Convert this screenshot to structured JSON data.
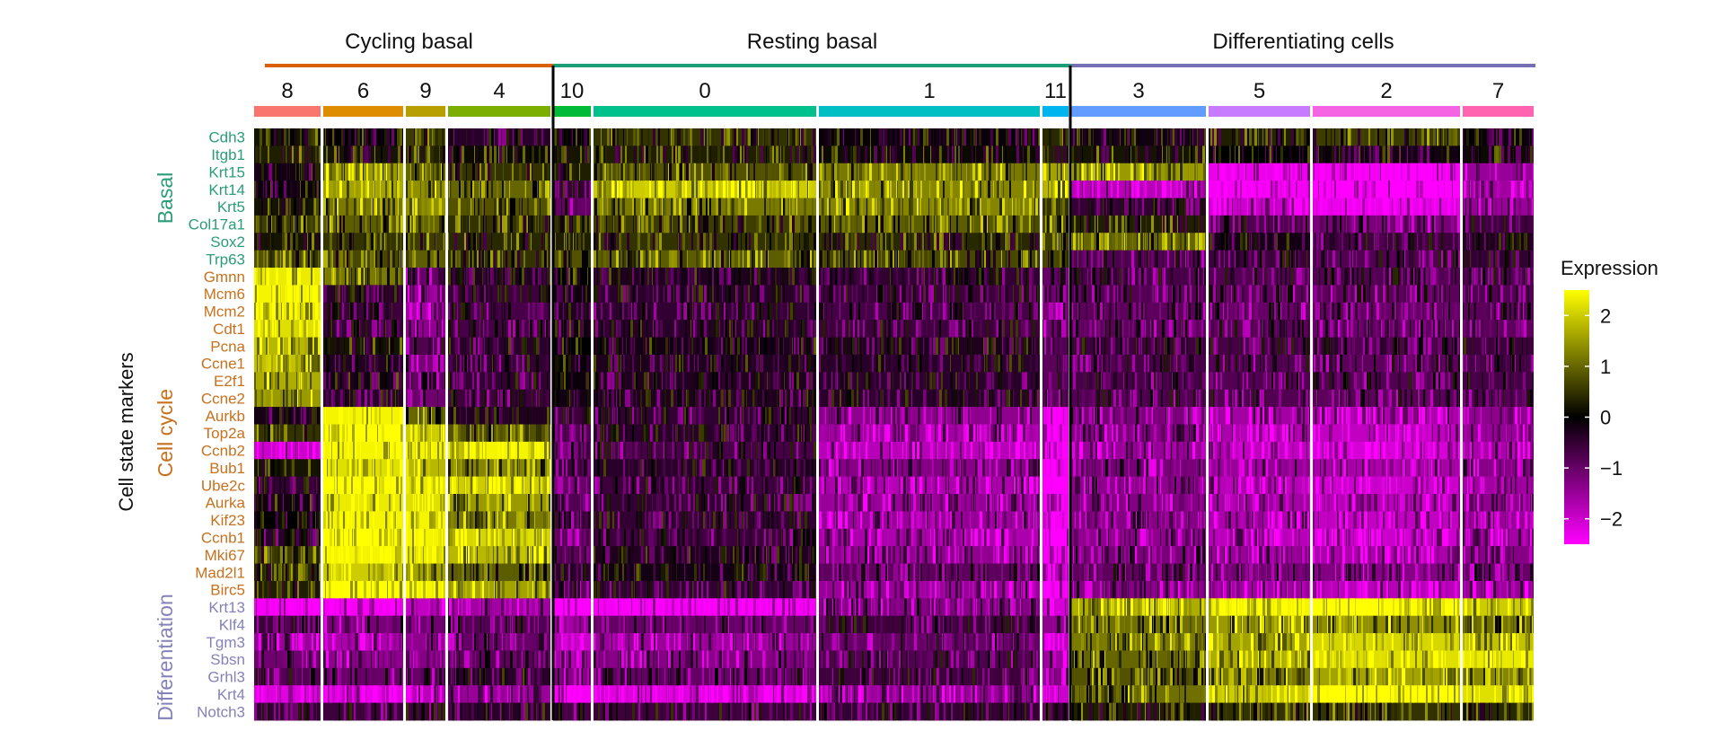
{
  "chart_data": {
    "type": "heatmap",
    "title": "",
    "y_axis_title": "Cell state markers",
    "legend": {
      "title": "Expression",
      "ticks": [
        "2",
        "1",
        "0",
        "−1",
        "−2"
      ],
      "tick_values": [
        2,
        1,
        0,
        -1,
        -2
      ],
      "range": [
        -2.5,
        2.5
      ],
      "placement": "right"
    },
    "colors": {
      "low": "#ff00ff",
      "mid": "#000000",
      "high": "#ffff00"
    },
    "cell_states": [
      {
        "name": "Cycling basal",
        "color": "#d95f02",
        "clusters": [
          "8",
          "6",
          "9",
          "4"
        ]
      },
      {
        "name": "Resting basal",
        "color": "#1b9e77",
        "clusters": [
          "10",
          "0",
          "1",
          "11"
        ]
      },
      {
        "name": "Differentiating cells",
        "color": "#7570b3",
        "clusters": [
          "3",
          "5",
          "2",
          "7"
        ]
      }
    ],
    "clusters": [
      {
        "label": "8",
        "color": "#f8766d"
      },
      {
        "label": "6",
        "color": "#de8c00"
      },
      {
        "label": "9",
        "color": "#b79f00"
      },
      {
        "label": "4",
        "color": "#7cae00"
      },
      {
        "label": "10",
        "color": "#00ba38"
      },
      {
        "label": "0",
        "color": "#00c08b"
      },
      {
        "label": "1",
        "color": "#00bfc4"
      },
      {
        "label": "11",
        "color": "#00b4f0"
      },
      {
        "label": "3",
        "color": "#619cff"
      },
      {
        "label": "5",
        "color": "#c77cff"
      },
      {
        "label": "2",
        "color": "#f564e3"
      },
      {
        "label": "7",
        "color": "#ff64b0"
      }
    ],
    "gene_groups": [
      {
        "name": "Basal",
        "color": "#2a9d78",
        "genes": [
          "Cdh3",
          "Itgb1",
          "Krt15",
          "Krt14",
          "Krt5",
          "Col17a1",
          "Sox2",
          "Trp63"
        ]
      },
      {
        "name": "Cell cycle",
        "color": "#c8711d",
        "genes": [
          "Gmnn",
          "Mcm6",
          "Mcm2",
          "Cdt1",
          "Pcna",
          "Ccne1",
          "E2f1",
          "Ccne2",
          "Aurkb",
          "Top2a",
          "Ccnb2",
          "Bub1",
          "Ube2c",
          "Aurka",
          "Kif23",
          "Ccnb1",
          "Mki67",
          "Mad2l1",
          "Birc5"
        ]
      },
      {
        "name": "Differentiation",
        "color": "#8482b8",
        "genes": [
          "Krt13",
          "Klf4",
          "Tgm3",
          "Sbsn",
          "Grhl3",
          "Krt4",
          "Notch3"
        ]
      }
    ],
    "mean_expression": [
      [
        0.2,
        0.0,
        0.6,
        -0.4,
        0.0,
        0.5,
        -0.1,
        0.4,
        -0.2,
        0.3,
        0.6,
        -0.1
      ],
      [
        0.3,
        0.2,
        0.3,
        0.1,
        0.2,
        0.3,
        0.1,
        0.3,
        0.2,
        0.0,
        -0.2,
        0.1
      ],
      [
        -0.2,
        1.5,
        1.0,
        0.5,
        0.3,
        0.8,
        1.2,
        1.6,
        1.5,
        -2.3,
        -2.4,
        -1.5
      ],
      [
        -0.1,
        1.6,
        1.4,
        1.0,
        -0.5,
        2.0,
        1.3,
        1.8,
        -1.8,
        -2.4,
        -2.5,
        -1.6
      ],
      [
        0.2,
        1.2,
        1.4,
        0.8,
        -1.0,
        1.2,
        1.3,
        0.5,
        -0.5,
        -2.0,
        -2.3,
        -1.5
      ],
      [
        0.6,
        0.9,
        1.0,
        0.5,
        0.5,
        0.6,
        0.9,
        0.8,
        0.3,
        -0.8,
        -1.2,
        -0.6
      ],
      [
        0.2,
        0.5,
        0.6,
        0.4,
        0.3,
        0.5,
        0.4,
        0.6,
        1.0,
        -0.2,
        -0.6,
        -0.3
      ],
      [
        0.8,
        0.7,
        0.9,
        0.5,
        0.8,
        0.9,
        0.7,
        0.7,
        -0.8,
        -0.6,
        -0.8,
        -0.5
      ],
      [
        2.3,
        1.2,
        -1.0,
        -0.3,
        0.0,
        -0.3,
        -0.5,
        -1.0,
        -0.7,
        -0.8,
        -0.8,
        -0.7
      ],
      [
        2.4,
        -0.4,
        -1.5,
        -0.6,
        -0.2,
        -0.4,
        -0.6,
        -1.1,
        -0.8,
        -0.9,
        -0.9,
        -0.8
      ],
      [
        2.3,
        -0.6,
        -1.6,
        -0.7,
        -0.3,
        -0.5,
        -0.7,
        -1.2,
        -0.9,
        -1.0,
        -1.0,
        -0.9
      ],
      [
        2.2,
        -0.5,
        -1.4,
        -0.7,
        -0.2,
        -0.4,
        -0.6,
        -1.1,
        -0.9,
        -0.9,
        -1.0,
        -0.9
      ],
      [
        1.8,
        0.2,
        -0.8,
        -0.4,
        0.0,
        -0.2,
        -0.3,
        -0.8,
        -0.6,
        -0.7,
        -0.8,
        -0.6
      ],
      [
        1.9,
        -0.3,
        -1.2,
        -0.5,
        -0.1,
        -0.3,
        -0.4,
        -0.9,
        -0.7,
        -0.8,
        -0.9,
        -0.7
      ],
      [
        1.7,
        -0.2,
        -1.0,
        -0.5,
        -0.1,
        -0.3,
        -0.4,
        -0.9,
        -0.7,
        -0.8,
        -0.8,
        -0.7
      ],
      [
        1.5,
        -0.4,
        -1.1,
        -0.6,
        -0.2,
        -0.3,
        -0.4,
        -0.9,
        -0.8,
        -0.8,
        -0.9,
        -0.8
      ],
      [
        -0.2,
        2.4,
        1.0,
        -0.3,
        -0.6,
        -0.5,
        -1.4,
        -2.4,
        -1.2,
        -1.6,
        -1.7,
        -1.4
      ],
      [
        0.5,
        2.5,
        2.0,
        0.8,
        -0.8,
        -0.4,
        -1.6,
        -2.4,
        -1.3,
        -1.7,
        -1.9,
        -1.5
      ],
      [
        -2.0,
        2.4,
        2.4,
        2.4,
        -1.2,
        -0.7,
        -1.8,
        -2.5,
        -1.5,
        -1.9,
        -2.1,
        -1.7
      ],
      [
        0.2,
        2.2,
        1.8,
        1.3,
        -0.6,
        -0.4,
        -1.3,
        -2.3,
        -1.2,
        -1.5,
        -1.7,
        -1.3
      ],
      [
        -0.5,
        2.5,
        2.3,
        2.0,
        -1.0,
        -0.6,
        -1.7,
        -2.5,
        -1.4,
        -1.8,
        -2.0,
        -1.6
      ],
      [
        -0.2,
        2.3,
        2.2,
        1.5,
        -0.8,
        -0.5,
        -1.5,
        -2.4,
        -1.3,
        -1.6,
        -1.8,
        -1.4
      ],
      [
        0.0,
        2.4,
        2.4,
        1.2,
        -0.7,
        -0.5,
        -1.5,
        -2.4,
        -1.3,
        -1.7,
        -1.9,
        -1.5
      ],
      [
        -0.4,
        2.5,
        2.4,
        2.1,
        -1.1,
        -0.6,
        -1.7,
        -2.5,
        -1.4,
        -1.8,
        -2.0,
        -1.6
      ],
      [
        0.6,
        2.4,
        2.3,
        1.8,
        -0.9,
        -0.3,
        -1.4,
        -2.4,
        -1.2,
        -1.5,
        -1.7,
        -1.3
      ],
      [
        0.4,
        2.0,
        1.6,
        0.9,
        -0.4,
        -0.2,
        -0.9,
        -2.0,
        -0.9,
        -1.1,
        -1.3,
        -1.0
      ],
      [
        0.3,
        2.5,
        2.4,
        1.6,
        -0.9,
        -0.5,
        -1.5,
        -2.4,
        -1.3,
        -1.6,
        -1.8,
        -1.5
      ],
      [
        -2.4,
        -2.4,
        -1.9,
        -1.6,
        -2.5,
        -2.4,
        -1.3,
        -2.1,
        1.7,
        2.4,
        2.5,
        2.0
      ],
      [
        -0.6,
        -1.2,
        -1.1,
        -0.8,
        -1.6,
        -1.0,
        -0.6,
        -1.4,
        1.1,
        1.5,
        1.4,
        1.1
      ],
      [
        -1.5,
        -1.7,
        -1.4,
        -1.0,
        -2.0,
        -1.5,
        -1.0,
        -1.9,
        1.2,
        1.6,
        2.1,
        1.9
      ],
      [
        -1.1,
        -1.4,
        -1.3,
        -0.9,
        -1.6,
        -1.3,
        -0.8,
        -1.6,
        1.0,
        1.7,
        2.2,
        2.3
      ],
      [
        -0.8,
        -1.0,
        -1.0,
        -0.4,
        -1.3,
        -1.0,
        -0.6,
        -1.3,
        0.8,
        1.2,
        1.6,
        1.3
      ],
      [
        -2.2,
        -2.3,
        -1.8,
        -1.5,
        -2.4,
        -2.2,
        -1.5,
        -2.0,
        1.1,
        2.0,
        2.5,
        2.2
      ],
      [
        -0.5,
        -0.6,
        -0.6,
        -0.4,
        -0.7,
        -0.6,
        -0.5,
        -0.7,
        0.3,
        0.5,
        0.5,
        0.4
      ]
    ]
  }
}
